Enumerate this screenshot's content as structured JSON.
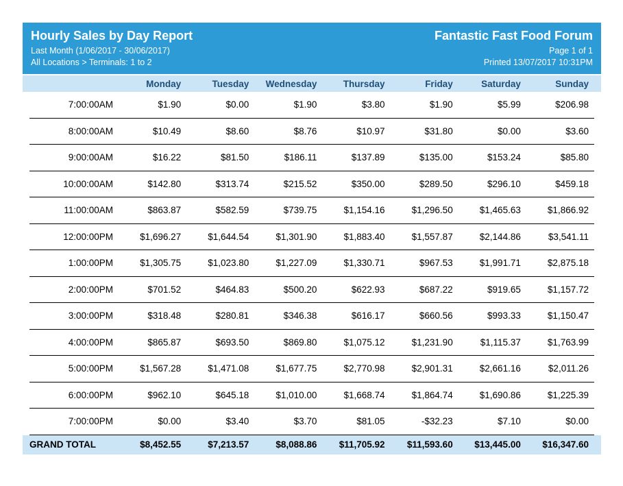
{
  "report": {
    "title": "Hourly Sales by Day Report",
    "period": "Last Month (1/06/2017 - 30/06/2017)",
    "scope": "All Locations > Terminals: 1 to 2",
    "company": "Fantastic Fast Food Forum",
    "page_indicator": "Page 1 of 1",
    "printed": "Printed 13/07/2017 10:31PM"
  },
  "colors": {
    "header_bg": "#2D9BD5",
    "band_bg": "#CBE5F7",
    "band_text": "#1F4E79",
    "row_line": "#000000"
  },
  "table": {
    "columns": [
      "Monday",
      "Tuesday",
      "Wednesday",
      "Thursday",
      "Friday",
      "Saturday",
      "Sunday"
    ],
    "rows": [
      {
        "time": "7:00:00AM",
        "values": [
          "$1.90",
          "$0.00",
          "$1.90",
          "$3.80",
          "$1.90",
          "$5.99",
          "$206.98"
        ]
      },
      {
        "time": "8:00:00AM",
        "values": [
          "$10.49",
          "$8.60",
          "$8.76",
          "$10.97",
          "$31.80",
          "$0.00",
          "$3.60"
        ]
      },
      {
        "time": "9:00:00AM",
        "values": [
          "$16.22",
          "$81.50",
          "$186.11",
          "$137.89",
          "$135.00",
          "$153.24",
          "$85.80"
        ]
      },
      {
        "time": "10:00:00AM",
        "values": [
          "$142.80",
          "$313.74",
          "$215.52",
          "$350.00",
          "$289.50",
          "$296.10",
          "$459.18"
        ]
      },
      {
        "time": "11:00:00AM",
        "values": [
          "$863.87",
          "$582.59",
          "$739.75",
          "$1,154.16",
          "$1,296.50",
          "$1,465.63",
          "$1,866.92"
        ]
      },
      {
        "time": "12:00:00PM",
        "values": [
          "$1,696.27",
          "$1,644.54",
          "$1,301.90",
          "$1,883.40",
          "$1,557.87",
          "$2,144.86",
          "$3,541.11"
        ]
      },
      {
        "time": "1:00:00PM",
        "values": [
          "$1,305.75",
          "$1,023.80",
          "$1,227.09",
          "$1,330.71",
          "$967.53",
          "$1,991.71",
          "$2,875.18"
        ]
      },
      {
        "time": "2:00:00PM",
        "values": [
          "$701.52",
          "$464.83",
          "$500.20",
          "$622.93",
          "$687.22",
          "$919.65",
          "$1,157.72"
        ]
      },
      {
        "time": "3:00:00PM",
        "values": [
          "$318.48",
          "$280.81",
          "$346.38",
          "$616.17",
          "$660.56",
          "$993.33",
          "$1,150.47"
        ]
      },
      {
        "time": "4:00:00PM",
        "values": [
          "$865.87",
          "$693.50",
          "$869.80",
          "$1,075.12",
          "$1,231.90",
          "$1,115.37",
          "$1,763.99"
        ]
      },
      {
        "time": "5:00:00PM",
        "values": [
          "$1,567.28",
          "$1,471.08",
          "$1,677.75",
          "$2,770.98",
          "$2,901.31",
          "$2,661.16",
          "$2,011.26"
        ]
      },
      {
        "time": "6:00:00PM",
        "values": [
          "$962.10",
          "$645.18",
          "$1,010.00",
          "$1,668.74",
          "$1,864.74",
          "$1,690.86",
          "$1,225.39"
        ]
      },
      {
        "time": "7:00:00PM",
        "values": [
          "$0.00",
          "$3.40",
          "$3.70",
          "$81.05",
          "-$32.23",
          "$7.10",
          "$0.00"
        ]
      }
    ],
    "grand_total": {
      "label": "GRAND TOTAL",
      "values": [
        "$8,452.55",
        "$7,213.57",
        "$8,088.86",
        "$11,705.92",
        "$11,593.60",
        "$13,445.00",
        "$16,347.60"
      ]
    }
  }
}
